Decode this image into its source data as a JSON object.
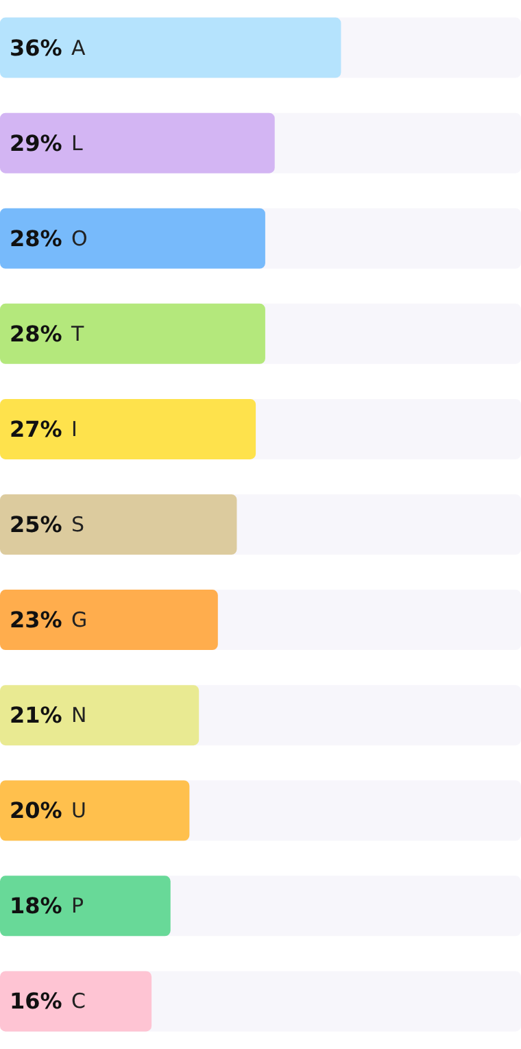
{
  "chart_data": {
    "type": "bar",
    "orientation": "horizontal",
    "categories": [
      "A",
      "L",
      "O",
      "T",
      "I",
      "S",
      "G",
      "N",
      "U",
      "P",
      "C"
    ],
    "values": [
      36,
      29,
      28,
      28,
      27,
      25,
      23,
      21,
      20,
      18,
      16
    ],
    "value_labels": [
      "36%",
      "29%",
      "28%",
      "28%",
      "27%",
      "25%",
      "23%",
      "21%",
      "20%",
      "18%",
      "16%"
    ],
    "colors": [
      "#b5e3fd",
      "#d3b5f3",
      "#77bafb",
      "#b4e87c",
      "#fee24c",
      "#dccb9e",
      "#ffad4d",
      "#e9ea92",
      "#ffc04d",
      "#68d998",
      "#fec4d3"
    ],
    "xlim": [
      0,
      55
    ],
    "tick_labels": false
  }
}
